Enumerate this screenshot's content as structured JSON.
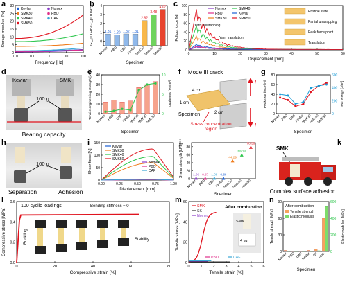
{
  "panels": {
    "a": {
      "label": "a",
      "xlabel": "Frequency [Hz]",
      "ylabel": "Storage modulus [Pa]",
      "xticks": [
        "0.01",
        "0.1",
        "1",
        "10",
        "100"
      ],
      "yticks": [
        "0",
        "5",
        "10",
        "15",
        "20",
        "25",
        "30"
      ],
      "legend": [
        {
          "name": "Kevlar",
          "color": "#1a5fd6"
        },
        {
          "name": "Nomex",
          "color": "#8a3ac8"
        },
        {
          "name": "SMK30",
          "color": "#f07d1e"
        },
        {
          "name": "PBO",
          "color": "#e02f8a"
        },
        {
          "name": "SMK40",
          "color": "#2ec64d"
        },
        {
          "name": "CAF",
          "color": "#3aa7d6"
        },
        {
          "name": "SMK50",
          "color": "#e0131e"
        }
      ]
    },
    "b": {
      "label": "b",
      "xlabel": "Specimen",
      "ylabel": "G'_{0.1Hz}/G'_{0.01Hz}",
      "yticks": [
        "0",
        "1",
        "2",
        "3",
        "4"
      ],
      "categories": [
        "Nomex",
        "PBO",
        "CAF",
        "Kevlar",
        "SMK30",
        "SMK40",
        "SMK50"
      ],
      "values": [
        1.31,
        1.2,
        1.32,
        1.31,
        2.82,
        3.48,
        4.07
      ],
      "value_labels": [
        "1.31",
        "1.20",
        "1.32",
        "1.31",
        "2.82",
        "3.48",
        "4.07"
      ],
      "colors": [
        "#8fb8ea",
        "#8fb8ea",
        "#8fb8ea",
        "#8fb8ea",
        "#f9b84a",
        "#6fd35e",
        "#e8432e"
      ]
    },
    "c": {
      "label": "c",
      "xlabel": "Displacement [mm]",
      "ylabel": "Pullout force [N]",
      "xticks": [
        "0",
        "10",
        "20",
        "30",
        "40",
        "50",
        "60"
      ],
      "yticks": [
        "0",
        "20",
        "40",
        "60",
        "80",
        "100"
      ],
      "legend": [
        {
          "name": "Nomex",
          "color": "#8a3ac8"
        },
        {
          "name": "PBO",
          "color": "#e02f8a"
        },
        {
          "name": "SMK30",
          "color": "#f07d1e"
        },
        {
          "name": "SMK40",
          "color": "#2ec64d"
        },
        {
          "name": "Kevlar",
          "color": "#1a5fd6"
        },
        {
          "name": "SMK50",
          "color": "#e0131e"
        }
      ],
      "annotations": [
        "Yarn unwrapping",
        "Yarn translation"
      ],
      "stages": [
        "Pristine state",
        "Partial unwrapping",
        "Peak force point",
        "Translation"
      ]
    },
    "d": {
      "label": "d",
      "left": "Kevlar",
      "right": "SMK",
      "weight": "100 g",
      "caption": "Bearing capacity"
    },
    "e": {
      "label": "e",
      "xlabel": "Specimen",
      "ylabel_left": "Tensile engineering strength [MPa]",
      "ylabel_right": "Toughness [MJ/m³]",
      "categories": [
        "Nomex",
        "PBO",
        "CAF",
        "Kevlar",
        "SMK30",
        "SMK40",
        "SMK50"
      ]
    },
    "f": {
      "label": "f",
      "title": "Mode III crack",
      "dims": [
        "4 cm",
        "1 cm",
        "2 cm"
      ],
      "specimen": "Specimen",
      "region": "Stress concentration region",
      "force": "F"
    },
    "g": {
      "label": "g",
      "xlabel": "Specimen",
      "ylabel_left": "Peak tear force [N]",
      "ylabel_right": "Tear energy [J/m²]",
      "categories": [
        "Nomex",
        "PBO",
        "CAF",
        "Kevlar",
        "SMK30",
        "SMK40",
        "SMK50"
      ]
    },
    "h": {
      "label": "h",
      "weight": "100 g",
      "left": "Separation",
      "right": "Adhesion"
    },
    "i": {
      "label": "i",
      "xlabel": "Displacement [mm]",
      "ylabel": "Shear force [N]",
      "xticks": [
        "0.00",
        "0.25",
        "0.50",
        "0.75",
        "1.00"
      ],
      "yticks": [
        "0",
        "50",
        "100",
        "150"
      ],
      "legend": [
        {
          "name": "Kevlar",
          "color": "#1a5fd6"
        },
        {
          "name": "SMK30",
          "color": "#f07d1e"
        },
        {
          "name": "SMK40",
          "color": "#2ec64d"
        },
        {
          "name": "SMK50",
          "color": "#e0131e"
        },
        {
          "name": "Nomex",
          "color": "#8a3ac8"
        },
        {
          "name": "PBO",
          "color": "#e02f8a"
        },
        {
          "name": "CAF",
          "color": "#3aa7d6"
        }
      ]
    },
    "j": {
      "label": "j",
      "xlabel": "Specimen",
      "ylabel": "Shear strength [kPa]",
      "yticks": [
        "0",
        "20",
        "40",
        "60",
        "80"
      ],
      "categories": [
        "Nomex",
        "PBO",
        "CAF",
        "Kevlar",
        "SMK30",
        "SMK40",
        "SMK50"
      ],
      "values": [
        1.06,
        0.87,
        1.08,
        0.86,
        44.29,
        59.14,
        78.36
      ],
      "value_labels": [
        "1.06",
        "0.87",
        "1.08",
        "0.86",
        "44.29",
        "59.14",
        "78.36"
      ],
      "colors": [
        "#8a3ac8",
        "#e02f8a",
        "#3aa7d6",
        "#1a5fd6",
        "#f07d1e",
        "#2ec64d",
        "#e0131e"
      ]
    },
    "k": {
      "label": "k",
      "tag": "SMK",
      "caption": "Complex surface adhesion"
    },
    "l": {
      "label": "l",
      "xlabel": "Compressive strain [%]",
      "ylabel": "Compressive stress [MPa]",
      "xticks": [
        "0",
        "20",
        "40",
        "60",
        "80"
      ],
      "yticks": [
        "0.0",
        "0.2",
        "0.4",
        "0.6"
      ],
      "title": "100 cyclic loadings",
      "note": "Bending stiffness ≈ 0",
      "left_note": "Buckling",
      "right_note": "Stability"
    },
    "m": {
      "label": "m",
      "xlabel": "Tensile strain [%]",
      "ylabel": "Tensile stress [MPa]",
      "xticks": [
        "0",
        "1",
        "2",
        "3",
        "4",
        "5",
        "6"
      ],
      "yticks": [
        "0",
        "20",
        "40",
        "60"
      ],
      "legend": [
        {
          "name": "SMK",
          "color": "#e0131e"
        },
        {
          "name": "SK",
          "color": "#333333"
        },
        {
          "name": "Nomex",
          "color": "#8a3ac8"
        },
        {
          "name": "PBO",
          "color": "#e02f8a"
        },
        {
          "name": "CAF",
          "color": "#3aa7d6"
        }
      ],
      "title": "After combustion",
      "tag": "SMK",
      "weight": "4 kg"
    },
    "n": {
      "label": "n",
      "xlabel": "Specimen",
      "ylabel_left": "Tensile strength [MPa]",
      "ylabel_right": "Elastic modulus [MPa]",
      "title": "After combustion",
      "legend": [
        "Tensile strength",
        "Elastic modulus"
      ],
      "categories": [
        "Nomex",
        "PBO",
        "CAF",
        "Kevlar",
        "SK",
        "SMK"
      ],
      "yticks_left": [
        "0",
        "30",
        "60",
        "90"
      ],
      "yticks_right": [
        "0",
        "200",
        "400",
        "600"
      ]
    }
  },
  "chart_data": [
    {
      "panel": "b",
      "type": "bar",
      "categories": [
        "Nomex",
        "PBO",
        "CAF",
        "Kevlar",
        "SMK30",
        "SMK40",
        "SMK50"
      ],
      "values": [
        1.31,
        1.2,
        1.32,
        1.31,
        2.82,
        3.48,
        4.07
      ],
      "ylim": [
        0,
        4.5
      ]
    },
    {
      "panel": "j",
      "type": "scatter",
      "categories": [
        "Nomex",
        "PBO",
        "CAF",
        "Kevlar",
        "SMK30",
        "SMK40",
        "SMK50"
      ],
      "values": [
        1.06,
        0.87,
        1.08,
        0.86,
        44.29,
        59.14,
        78.36
      ],
      "ylim": [
        0,
        90
      ]
    },
    {
      "panel": "e",
      "type": "bar",
      "categories": [
        "Nomex",
        "PBO",
        "CAF",
        "Kevlar",
        "SMK30",
        "SMK40",
        "SMK50"
      ],
      "series": [
        {
          "values": [
            12,
            14,
            12,
            13,
            27,
            30,
            33
          ]
        },
        {
          "values": [
            0.5,
            0.7,
            1.2,
            0.9,
            6.0,
            7.5,
            7.8
          ]
        }
      ]
    },
    {
      "panel": "g",
      "type": "line",
      "categories": [
        "Nomex",
        "PBO",
        "CAF",
        "Kevlar",
        "SMK30",
        "SMK40",
        "SMK50"
      ],
      "series": [
        {
          "values": [
            33,
            28,
            15,
            20,
            45,
            57,
            63
          ]
        },
        {
          "values": [
            300,
            280,
            150,
            180,
            400,
            430,
            450
          ]
        }
      ]
    },
    {
      "panel": "n",
      "type": "bar",
      "categories": [
        "Nomex",
        "PBO",
        "CAF",
        "Kevlar",
        "SK",
        "SMK"
      ],
      "series": [
        {
          "name": "Tensile strength",
          "values": [
            2,
            1,
            1,
            2,
            4,
            60
          ]
        },
        {
          "name": "Elastic modulus",
          "values": [
            5,
            3,
            3,
            6,
            10,
            630
          ]
        }
      ]
    }
  ]
}
